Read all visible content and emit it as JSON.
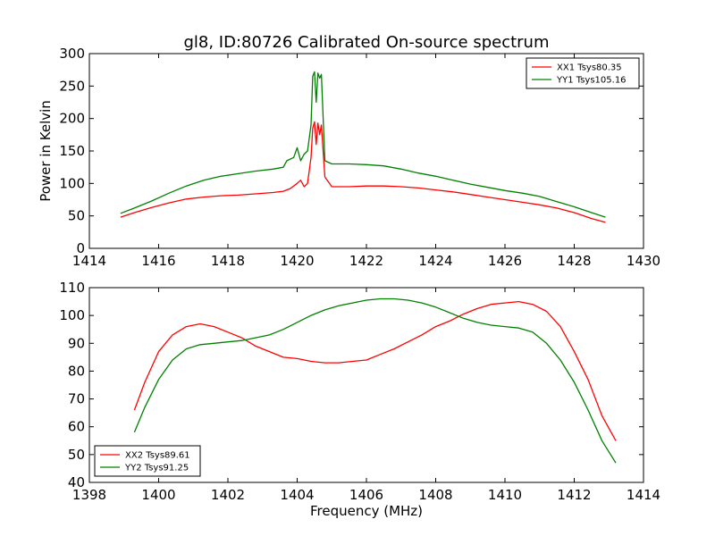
{
  "title": "gl8, ID:80726 Calibrated On-source spectrum",
  "chart_data": [
    {
      "type": "line",
      "title": "gl8, ID:80726 Calibrated On-source spectrum",
      "xlabel": "",
      "ylabel": "Power in Kelvin",
      "xlim": [
        1414,
        1430
      ],
      "ylim": [
        0,
        300
      ],
      "xticks": [
        1414,
        1416,
        1418,
        1420,
        1422,
        1424,
        1426,
        1428,
        1430
      ],
      "yticks": [
        0,
        50,
        100,
        150,
        200,
        250,
        300
      ],
      "grid": false,
      "legend_position": "top-right",
      "series": [
        {
          "name": "XX1 Tsys80.35",
          "color": "#ff0000",
          "x": [
            1414.9,
            1415.3,
            1415.8,
            1416.3,
            1416.8,
            1417.3,
            1417.8,
            1418.3,
            1418.8,
            1419.3,
            1419.6,
            1419.8,
            1420.0,
            1420.1,
            1420.2,
            1420.3,
            1420.4,
            1420.45,
            1420.5,
            1420.55,
            1420.6,
            1420.65,
            1420.7,
            1420.8,
            1421.0,
            1421.5,
            1422.0,
            1422.5,
            1423.0,
            1423.5,
            1424.0,
            1424.5,
            1425.0,
            1425.5,
            1426.0,
            1426.5,
            1427.0,
            1427.5,
            1428.0,
            1428.5,
            1428.9
          ],
          "y": [
            48,
            55,
            63,
            70,
            76,
            79,
            81,
            82,
            84,
            86,
            88,
            92,
            100,
            105,
            95,
            100,
            140,
            185,
            195,
            160,
            193,
            175,
            190,
            110,
            95,
            95,
            96,
            96,
            95,
            93,
            90,
            87,
            83,
            79,
            75,
            71,
            67,
            62,
            55,
            46,
            40
          ]
        },
        {
          "name": "YY1 Tsys105.16",
          "color": "#008000",
          "x": [
            1414.9,
            1415.3,
            1415.8,
            1416.3,
            1416.8,
            1417.3,
            1417.8,
            1418.3,
            1418.8,
            1419.3,
            1419.6,
            1419.7,
            1419.9,
            1420.0,
            1420.1,
            1420.2,
            1420.3,
            1420.4,
            1420.45,
            1420.5,
            1420.55,
            1420.6,
            1420.65,
            1420.7,
            1420.8,
            1421.0,
            1421.5,
            1422.0,
            1422.5,
            1423.0,
            1423.5,
            1424.0,
            1424.5,
            1425.0,
            1425.5,
            1426.0,
            1426.5,
            1427.0,
            1427.5,
            1428.0,
            1428.5,
            1428.9
          ],
          "y": [
            54,
            62,
            73,
            85,
            96,
            105,
            111,
            115,
            119,
            122,
            125,
            135,
            140,
            155,
            135,
            145,
            150,
            190,
            265,
            272,
            225,
            270,
            262,
            268,
            135,
            130,
            130,
            129,
            127,
            122,
            116,
            111,
            105,
            99,
            94,
            89,
            85,
            80,
            72,
            64,
            55,
            48
          ]
        }
      ]
    },
    {
      "type": "line",
      "title": "",
      "xlabel": "Frequency (MHz)",
      "ylabel": "",
      "xlim": [
        1398,
        1414
      ],
      "ylim": [
        40,
        110
      ],
      "xticks": [
        1398,
        1400,
        1402,
        1404,
        1406,
        1408,
        1410,
        1412,
        1414
      ],
      "yticks": [
        40,
        50,
        60,
        70,
        80,
        90,
        100,
        110
      ],
      "grid": false,
      "legend_position": "bottom-left",
      "series": [
        {
          "name": "XX2 Tsys89.61",
          "color": "#ff0000",
          "x": [
            1399.3,
            1399.6,
            1400.0,
            1400.4,
            1400.8,
            1401.2,
            1401.6,
            1402.0,
            1402.4,
            1402.8,
            1403.2,
            1403.6,
            1404.0,
            1404.4,
            1404.8,
            1405.2,
            1405.6,
            1406.0,
            1406.4,
            1406.8,
            1407.2,
            1407.6,
            1408.0,
            1408.4,
            1408.8,
            1409.2,
            1409.6,
            1410.0,
            1410.4,
            1410.8,
            1411.2,
            1411.6,
            1412.0,
            1412.4,
            1412.8,
            1413.2
          ],
          "y": [
            66,
            76,
            87,
            93,
            96,
            97,
            96,
            94,
            92,
            89,
            87,
            85,
            84.5,
            83.5,
            83,
            83,
            83.5,
            84,
            86,
            88,
            90.5,
            93,
            96,
            98,
            100.5,
            102.5,
            104,
            104.5,
            105,
            104,
            101.5,
            96,
            87,
            77,
            64,
            55
          ]
        },
        {
          "name": "YY2 Tsys91.25",
          "color": "#008000",
          "x": [
            1399.3,
            1399.6,
            1400.0,
            1400.4,
            1400.8,
            1401.2,
            1401.6,
            1402.0,
            1402.4,
            1402.8,
            1403.2,
            1403.6,
            1404.0,
            1404.4,
            1404.8,
            1405.2,
            1405.6,
            1406.0,
            1406.4,
            1406.8,
            1407.2,
            1407.6,
            1408.0,
            1408.4,
            1408.8,
            1409.2,
            1409.6,
            1410.0,
            1410.4,
            1410.8,
            1411.2,
            1411.6,
            1412.0,
            1412.4,
            1412.8,
            1413.2
          ],
          "y": [
            58,
            67,
            77,
            84,
            88,
            89.5,
            90,
            90.5,
            91,
            92,
            93,
            95,
            97.5,
            100,
            102,
            103.5,
            104.5,
            105.5,
            106,
            106,
            105.5,
            104.5,
            103,
            101,
            99,
            97.5,
            96.5,
            96,
            95.5,
            94,
            90,
            84,
            76,
            66,
            55,
            47
          ]
        }
      ]
    }
  ]
}
